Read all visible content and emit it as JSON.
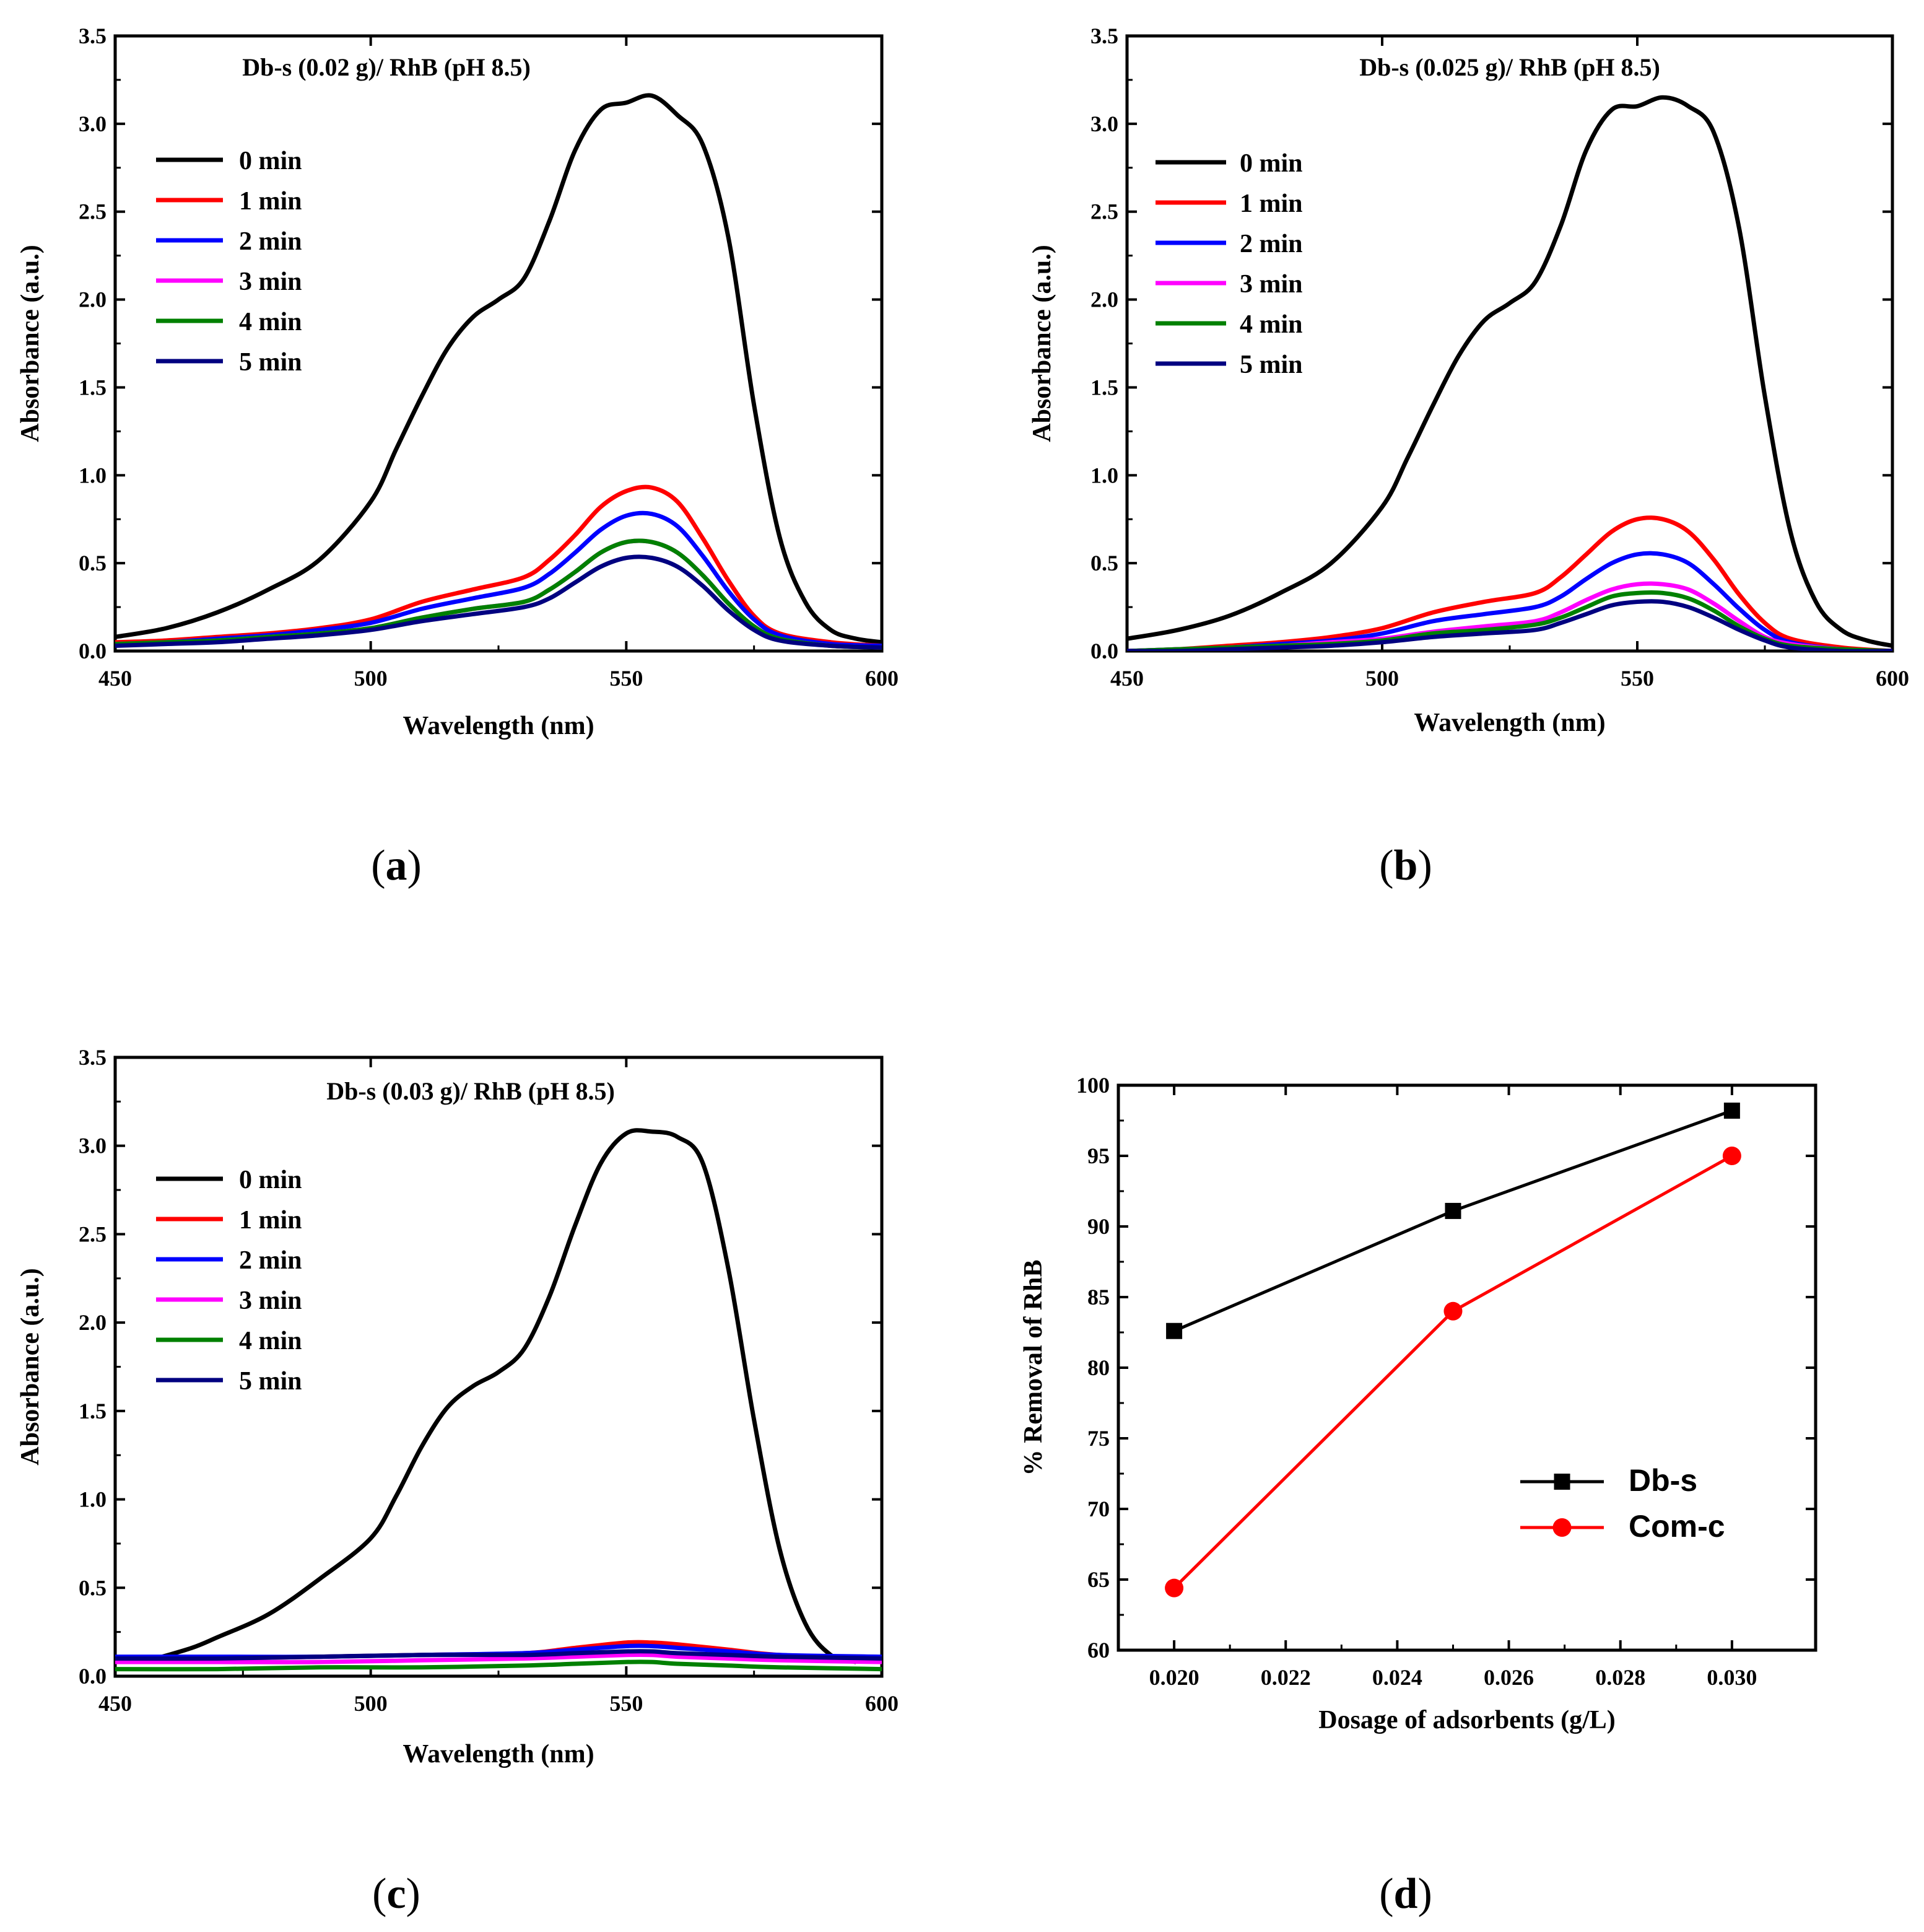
{
  "figure": {
    "captions": [
      "(a)",
      "(b)",
      "(c)",
      "(d)"
    ]
  },
  "chart_data": [
    {
      "id": "a",
      "type": "line",
      "title": "Db-s (0.02 g)/ RhB (pH 8.5)",
      "xlabel": "Wavelength (nm)",
      "ylabel": "Absorbance (a.u.)",
      "xlim": [
        450,
        600
      ],
      "ylim": [
        0,
        3.5
      ],
      "xticks": [
        450,
        500,
        550,
        600
      ],
      "yticks": [
        0.0,
        0.5,
        1.0,
        1.5,
        2.0,
        2.5,
        3.0,
        3.5
      ],
      "legend_position": "top-left",
      "series": [
        {
          "name": "0 min",
          "color": "#000000",
          "x": [
            450,
            460,
            470,
            480,
            490,
            500,
            505,
            510,
            515,
            520,
            525,
            530,
            535,
            540,
            545,
            550,
            555,
            560,
            565,
            570,
            575,
            580,
            585,
            590,
            595,
            600
          ],
          "y": [
            0.08,
            0.13,
            0.22,
            0.35,
            0.52,
            0.85,
            1.15,
            1.45,
            1.72,
            1.9,
            2.0,
            2.12,
            2.45,
            2.85,
            3.08,
            3.12,
            3.16,
            3.05,
            2.88,
            2.35,
            1.4,
            0.65,
            0.28,
            0.12,
            0.07,
            0.05
          ]
        },
        {
          "name": "1 min",
          "color": "#ff0000",
          "x": [
            450,
            460,
            470,
            480,
            490,
            500,
            510,
            520,
            530,
            535,
            540,
            545,
            550,
            555,
            560,
            565,
            570,
            575,
            580,
            590,
            600
          ],
          "y": [
            0.05,
            0.06,
            0.08,
            0.1,
            0.13,
            0.18,
            0.28,
            0.35,
            0.42,
            0.52,
            0.66,
            0.82,
            0.91,
            0.93,
            0.85,
            0.64,
            0.4,
            0.2,
            0.1,
            0.05,
            0.03
          ]
        },
        {
          "name": "2 min",
          "color": "#0000ff",
          "x": [
            450,
            460,
            470,
            480,
            490,
            500,
            510,
            520,
            530,
            535,
            540,
            545,
            550,
            555,
            560,
            565,
            570,
            575,
            580,
            590,
            600
          ],
          "y": [
            0.04,
            0.05,
            0.07,
            0.09,
            0.12,
            0.16,
            0.24,
            0.3,
            0.36,
            0.44,
            0.56,
            0.69,
            0.77,
            0.78,
            0.71,
            0.54,
            0.34,
            0.18,
            0.09,
            0.04,
            0.03
          ]
        },
        {
          "name": "3 min",
          "color": "#ff00ff",
          "x": [
            450,
            460,
            470,
            480,
            490,
            500,
            510,
            520,
            530,
            535,
            540,
            545,
            550,
            555,
            560,
            565,
            570,
            575,
            580,
            590,
            600
          ],
          "y": [
            0.04,
            0.05,
            0.06,
            0.08,
            0.1,
            0.13,
            0.19,
            0.24,
            0.28,
            0.35,
            0.45,
            0.56,
            0.62,
            0.62,
            0.56,
            0.43,
            0.27,
            0.14,
            0.07,
            0.03,
            0.02
          ]
        },
        {
          "name": "4 min",
          "color": "#008000",
          "x": [
            450,
            460,
            470,
            480,
            490,
            500,
            510,
            520,
            530,
            535,
            540,
            545,
            550,
            555,
            560,
            565,
            570,
            575,
            580,
            590,
            600
          ],
          "y": [
            0.04,
            0.05,
            0.06,
            0.08,
            0.1,
            0.13,
            0.19,
            0.24,
            0.28,
            0.35,
            0.45,
            0.56,
            0.62,
            0.62,
            0.56,
            0.43,
            0.27,
            0.14,
            0.07,
            0.03,
            0.02
          ]
        },
        {
          "name": "5 min",
          "color": "#000080",
          "x": [
            450,
            460,
            470,
            480,
            490,
            500,
            510,
            520,
            530,
            535,
            540,
            545,
            550,
            555,
            560,
            565,
            570,
            575,
            580,
            590,
            600
          ],
          "y": [
            0.03,
            0.04,
            0.05,
            0.07,
            0.09,
            0.12,
            0.17,
            0.21,
            0.25,
            0.3,
            0.39,
            0.48,
            0.53,
            0.53,
            0.48,
            0.37,
            0.23,
            0.12,
            0.06,
            0.03,
            0.02
          ]
        }
      ]
    },
    {
      "id": "b",
      "type": "line",
      "title": "Db-s (0.025 g)/ RhB (pH 8.5)",
      "xlabel": "Wavelength (nm)",
      "ylabel": "Absorbance (a.u.)",
      "xlim": [
        450,
        600
      ],
      "ylim": [
        0,
        3.5
      ],
      "xticks": [
        450,
        500,
        550,
        600
      ],
      "yticks": [
        0.0,
        0.5,
        1.0,
        1.5,
        2.0,
        2.5,
        3.0,
        3.5
      ],
      "legend_position": "top-left",
      "series": [
        {
          "name": "0 min",
          "color": "#000000",
          "x": [
            450,
            460,
            470,
            480,
            490,
            500,
            505,
            510,
            515,
            520,
            525,
            530,
            535,
            540,
            545,
            550,
            555,
            560,
            565,
            570,
            575,
            580,
            585,
            590,
            595,
            600
          ],
          "y": [
            0.07,
            0.12,
            0.2,
            0.33,
            0.5,
            0.82,
            1.1,
            1.4,
            1.68,
            1.88,
            1.98,
            2.1,
            2.42,
            2.85,
            3.08,
            3.1,
            3.15,
            3.1,
            2.95,
            2.4,
            1.45,
            0.68,
            0.28,
            0.12,
            0.06,
            0.03
          ]
        },
        {
          "name": "1 min",
          "color": "#ff0000",
          "x": [
            450,
            460,
            470,
            480,
            490,
            500,
            510,
            520,
            530,
            535,
            540,
            545,
            550,
            555,
            560,
            565,
            570,
            575,
            580,
            590,
            600
          ],
          "y": [
            0.0,
            0.01,
            0.03,
            0.05,
            0.08,
            0.13,
            0.22,
            0.28,
            0.33,
            0.42,
            0.55,
            0.68,
            0.75,
            0.75,
            0.68,
            0.52,
            0.32,
            0.16,
            0.07,
            0.02,
            0.0
          ]
        },
        {
          "name": "2 min",
          "color": "#0000ff",
          "x": [
            450,
            460,
            470,
            480,
            490,
            500,
            510,
            520,
            530,
            535,
            540,
            545,
            550,
            555,
            560,
            565,
            570,
            575,
            580,
            590,
            600
          ],
          "y": [
            0.0,
            0.01,
            0.02,
            0.04,
            0.06,
            0.1,
            0.17,
            0.21,
            0.25,
            0.31,
            0.41,
            0.5,
            0.55,
            0.55,
            0.5,
            0.38,
            0.24,
            0.12,
            0.05,
            0.01,
            0.0
          ]
        },
        {
          "name": "3 min",
          "color": "#ff00ff",
          "x": [
            450,
            460,
            470,
            480,
            490,
            500,
            510,
            520,
            530,
            535,
            540,
            545,
            550,
            555,
            560,
            565,
            570,
            575,
            580,
            590,
            600
          ],
          "y": [
            0.0,
            0.01,
            0.02,
            0.03,
            0.05,
            0.07,
            0.11,
            0.14,
            0.17,
            0.22,
            0.29,
            0.35,
            0.38,
            0.38,
            0.35,
            0.27,
            0.17,
            0.08,
            0.04,
            0.01,
            0.0
          ]
        },
        {
          "name": "4 min",
          "color": "#008000",
          "x": [
            450,
            460,
            470,
            480,
            490,
            500,
            510,
            520,
            530,
            535,
            540,
            545,
            550,
            555,
            560,
            565,
            570,
            575,
            580,
            590,
            600
          ],
          "y": [
            0.0,
            0.01,
            0.02,
            0.03,
            0.04,
            0.06,
            0.1,
            0.12,
            0.15,
            0.19,
            0.25,
            0.31,
            0.33,
            0.33,
            0.3,
            0.23,
            0.14,
            0.07,
            0.03,
            0.01,
            0.0
          ]
        },
        {
          "name": "5 min",
          "color": "#000080",
          "x": [
            450,
            460,
            470,
            480,
            490,
            500,
            510,
            520,
            530,
            535,
            540,
            545,
            550,
            555,
            560,
            565,
            570,
            575,
            580,
            590,
            600
          ],
          "y": [
            0.0,
            0.0,
            0.01,
            0.02,
            0.03,
            0.05,
            0.08,
            0.1,
            0.12,
            0.16,
            0.21,
            0.26,
            0.28,
            0.28,
            0.25,
            0.19,
            0.12,
            0.06,
            0.02,
            0.0,
            0.0
          ]
        }
      ]
    },
    {
      "id": "c",
      "type": "line",
      "title": "Db-s (0.03 g)/ RhB (pH 8.5)",
      "xlabel": "Wavelength (nm)",
      "ylabel": "Absorbance (a.u.)",
      "xlim": [
        450,
        600
      ],
      "ylim": [
        0,
        3.5
      ],
      "xticks": [
        450,
        500,
        550,
        600
      ],
      "yticks": [
        0.0,
        0.5,
        1.0,
        1.5,
        2.0,
        2.5,
        3.0,
        3.5
      ],
      "legend_position": "top-left",
      "series": [
        {
          "name": "0 min",
          "color": "#000000",
          "x": [
            458,
            465,
            470,
            480,
            490,
            500,
            505,
            510,
            515,
            520,
            525,
            530,
            535,
            540,
            545,
            550,
            555,
            560,
            565,
            570,
            575,
            580,
            585,
            590,
            595
          ],
          "y": [
            0.1,
            0.16,
            0.22,
            0.35,
            0.55,
            0.78,
            1.02,
            1.3,
            1.52,
            1.64,
            1.72,
            1.85,
            2.15,
            2.55,
            2.9,
            3.07,
            3.08,
            3.05,
            2.9,
            2.3,
            1.45,
            0.72,
            0.3,
            0.12,
            0.08
          ]
        },
        {
          "name": "1 min",
          "color": "#ff0000",
          "x": [
            450,
            470,
            490,
            510,
            530,
            540,
            550,
            555,
            560,
            570,
            580,
            600
          ],
          "y": [
            0.1,
            0.1,
            0.11,
            0.12,
            0.13,
            0.16,
            0.19,
            0.19,
            0.18,
            0.15,
            0.12,
            0.1
          ]
        },
        {
          "name": "2 min",
          "color": "#0000ff",
          "x": [
            450,
            470,
            490,
            510,
            530,
            540,
            550,
            555,
            560,
            570,
            580,
            600
          ],
          "y": [
            0.11,
            0.11,
            0.11,
            0.12,
            0.13,
            0.15,
            0.17,
            0.17,
            0.16,
            0.14,
            0.12,
            0.11
          ]
        },
        {
          "name": "3 min",
          "color": "#ff00ff",
          "x": [
            450,
            470,
            490,
            510,
            530,
            540,
            550,
            555,
            560,
            570,
            580,
            600
          ],
          "y": [
            0.08,
            0.08,
            0.08,
            0.09,
            0.1,
            0.11,
            0.12,
            0.12,
            0.11,
            0.1,
            0.09,
            0.08
          ]
        },
        {
          "name": "4 min",
          "color": "#008000",
          "x": [
            450,
            470,
            490,
            510,
            530,
            540,
            550,
            555,
            560,
            570,
            580,
            600
          ],
          "y": [
            0.04,
            0.04,
            0.05,
            0.05,
            0.06,
            0.07,
            0.08,
            0.08,
            0.07,
            0.06,
            0.05,
            0.04
          ]
        },
        {
          "name": "5 min",
          "color": "#000080",
          "x": [
            450,
            470,
            490,
            510,
            530,
            540,
            550,
            555,
            560,
            570,
            580,
            600
          ],
          "y": [
            0.1,
            0.1,
            0.11,
            0.12,
            0.12,
            0.13,
            0.14,
            0.14,
            0.13,
            0.12,
            0.11,
            0.1
          ]
        }
      ]
    },
    {
      "id": "d",
      "type": "line",
      "title": "",
      "xlabel": "Dosage of adsorbents (g/L)",
      "ylabel": "% Removal of RhB",
      "xlim": [
        0.019,
        0.0315
      ],
      "ylim": [
        60,
        100
      ],
      "xticks": [
        "0.020",
        "0.022",
        "0.024",
        "0.026",
        "0.028",
        "0.030"
      ],
      "yticks": [
        60,
        65,
        70,
        75,
        80,
        85,
        90,
        95,
        100
      ],
      "legend_position": "bottom-right",
      "series": [
        {
          "name": "Db-s",
          "color": "#000000",
          "marker": "square",
          "x": [
            0.02,
            0.025,
            0.03
          ],
          "y": [
            82.6,
            91.1,
            98.2
          ]
        },
        {
          "name": "Com-c",
          "color": "#ff0000",
          "marker": "circle",
          "x": [
            0.02,
            0.025,
            0.03
          ],
          "y": [
            64.4,
            84.0,
            95.0
          ]
        }
      ]
    }
  ]
}
